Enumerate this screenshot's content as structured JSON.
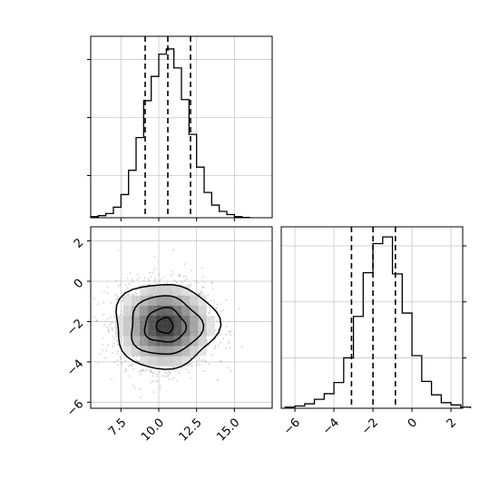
{
  "chart_data": [
    {
      "type": "histogram",
      "panel": "marginal-x",
      "bin_edges": [
        5.5,
        6.0,
        6.5,
        7.0,
        7.5,
        8.0,
        8.5,
        9.0,
        9.5,
        10.0,
        10.5,
        11.0,
        11.5,
        12.0,
        12.5,
        13.0,
        13.5,
        14.0,
        14.5,
        15.0,
        15.5,
        16.0
      ],
      "counts": [
        1,
        2,
        4,
        10,
        22,
        45,
        76,
        111,
        134,
        155,
        160,
        142,
        112,
        79,
        48,
        24,
        12,
        6,
        3,
        1,
        0.3
      ],
      "quantiles": [
        9.1,
        10.6,
        12.1
      ],
      "xlim": [
        5.5,
        17.5
      ],
      "ylim": [
        0,
        172
      ],
      "xticks": [
        7.5,
        10.0,
        12.5,
        15.0
      ],
      "yticks": [
        40,
        95,
        150
      ],
      "grid": true
    },
    {
      "type": "histogram",
      "panel": "marginal-y",
      "bin_edges": [
        -6.5,
        -6.0,
        -5.5,
        -5.0,
        -4.5,
        -4.0,
        -3.5,
        -3.0,
        -2.5,
        -2.0,
        -1.5,
        -1.0,
        -0.5,
        0.0,
        0.5,
        1.0,
        1.5,
        2.0,
        2.5,
        3.0
      ],
      "counts": [
        1,
        2,
        4,
        8,
        13,
        23,
        45,
        82,
        121,
        147,
        153,
        120,
        85,
        47,
        24,
        12,
        5,
        3,
        1
      ],
      "quantiles": [
        -3.1,
        -2.0,
        -0.85
      ],
      "xlim": [
        -6.7,
        2.6
      ],
      "ylim": [
        0,
        162
      ],
      "xticks": [
        -6,
        -4,
        -2,
        0,
        2
      ],
      "xtick_labels": [
        "−6",
        "−4",
        "−2",
        "0",
        "2"
      ],
      "yticks": [
        45,
        95,
        145
      ],
      "grid": true
    },
    {
      "type": "heatmap",
      "panel": "joint",
      "xlim": [
        5.5,
        17.5
      ],
      "ylim": [
        -6.3,
        2.7
      ],
      "xticks": [
        7.5,
        10.0,
        12.5,
        15.0
      ],
      "xtick_labels": [
        "7.5",
        "10.0",
        "12.5",
        "15.0"
      ],
      "yticks": [
        -6,
        -4,
        -2,
        0,
        2
      ],
      "ytick_labels": [
        "−6",
        "−4",
        "−2",
        "0",
        "2"
      ],
      "center": [
        10.4,
        -2.2
      ],
      "sigma": [
        1.55,
        1.05
      ],
      "scatter_points": 2400,
      "contour_levels": [
        {
          "level": 1,
          "rx": 3.4,
          "ry": 2.1
        },
        {
          "level": 2,
          "rx": 2.35,
          "ry": 1.45
        },
        {
          "level": 3,
          "rx": 1.35,
          "ry": 0.85
        },
        {
          "level": 4,
          "rx": 0.55,
          "ry": 0.38
        }
      ],
      "grid": true
    }
  ]
}
